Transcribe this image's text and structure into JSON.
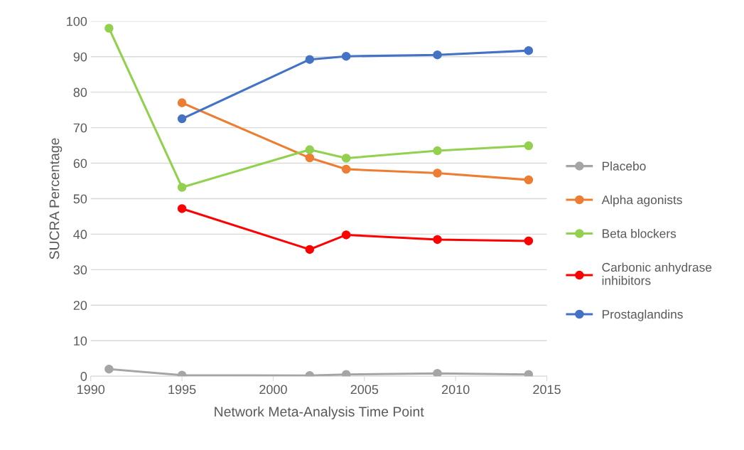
{
  "chart_data": {
    "type": "line",
    "xlabel": "Network Meta-Analysis Time Point",
    "ylabel": "SUCRA Percentage",
    "xlim": [
      1990,
      2015
    ],
    "xticks": [
      1990,
      1995,
      2000,
      2005,
      2010,
      2015
    ],
    "ylim": [
      0,
      100
    ],
    "yticks": [
      0,
      10,
      20,
      30,
      40,
      50,
      60,
      70,
      80,
      90,
      100
    ],
    "grid": "y",
    "legend": "right",
    "marker": "circle",
    "line_style": "solid",
    "series": [
      {
        "name": "Placebo",
        "color": "#a5a5a5",
        "x": [
          1991,
          1995,
          2002,
          2004,
          2009,
          2014
        ],
        "values": [
          2,
          0.3,
          0.2,
          0.5,
          0.8,
          0.5
        ]
      },
      {
        "name": "Alpha agonists",
        "color": "#ed7d31",
        "x": [
          1995,
          2002,
          2004,
          2009,
          2014
        ],
        "values": [
          77,
          61.5,
          58.3,
          57.2,
          55.3
        ]
      },
      {
        "name": "Beta blockers",
        "color": "#92d050",
        "x": [
          1991,
          1995,
          2002,
          2004,
          2009,
          2014
        ],
        "values": [
          98,
          53.2,
          63.8,
          61.4,
          63.5,
          64.9
        ]
      },
      {
        "name": "Carbonic anhydrase inhibitors",
        "color": "#ff0000",
        "x": [
          1995,
          2002,
          2004,
          2009,
          2014
        ],
        "values": [
          47.2,
          35.7,
          39.8,
          38.5,
          38.1
        ]
      },
      {
        "name": "Prostaglandins",
        "color": "#4472c4",
        "x": [
          1995,
          2002,
          2004,
          2009,
          2014
        ],
        "values": [
          72.5,
          89.2,
          90.1,
          90.5,
          91.7
        ]
      }
    ]
  }
}
